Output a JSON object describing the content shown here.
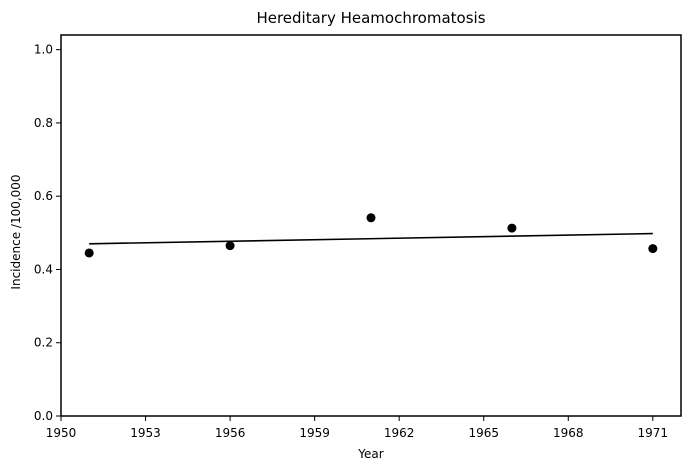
{
  "chart_data": {
    "type": "scatter",
    "title": "Hereditary Heamochromatosis",
    "xlabel": "Year",
    "ylabel": "Incidence /100,000",
    "xlim": [
      1950,
      1972
    ],
    "ylim": [
      0,
      1.04
    ],
    "x_ticks": [
      1950,
      1953,
      1956,
      1959,
      1962,
      1965,
      1968,
      1971
    ],
    "y_ticks": [
      0.0,
      0.2,
      0.4,
      0.6,
      0.8,
      1.0
    ],
    "y_tick_labels": [
      "0.0",
      "0.2",
      "0.4",
      "0.6",
      "0.8",
      "1.0"
    ],
    "grid": false,
    "series": [
      {
        "points": [
          {
            "x": 1951,
            "y": 0.445
          },
          {
            "x": 1956,
            "y": 0.465
          },
          {
            "x": 1961,
            "y": 0.541
          },
          {
            "x": 1966,
            "y": 0.513
          },
          {
            "x": 1971,
            "y": 0.457
          }
        ],
        "color": "#000000"
      }
    ],
    "trend_line": {
      "x": [
        1951,
        1971
      ],
      "y": [
        0.47,
        0.498
      ],
      "color": "#000000"
    }
  }
}
